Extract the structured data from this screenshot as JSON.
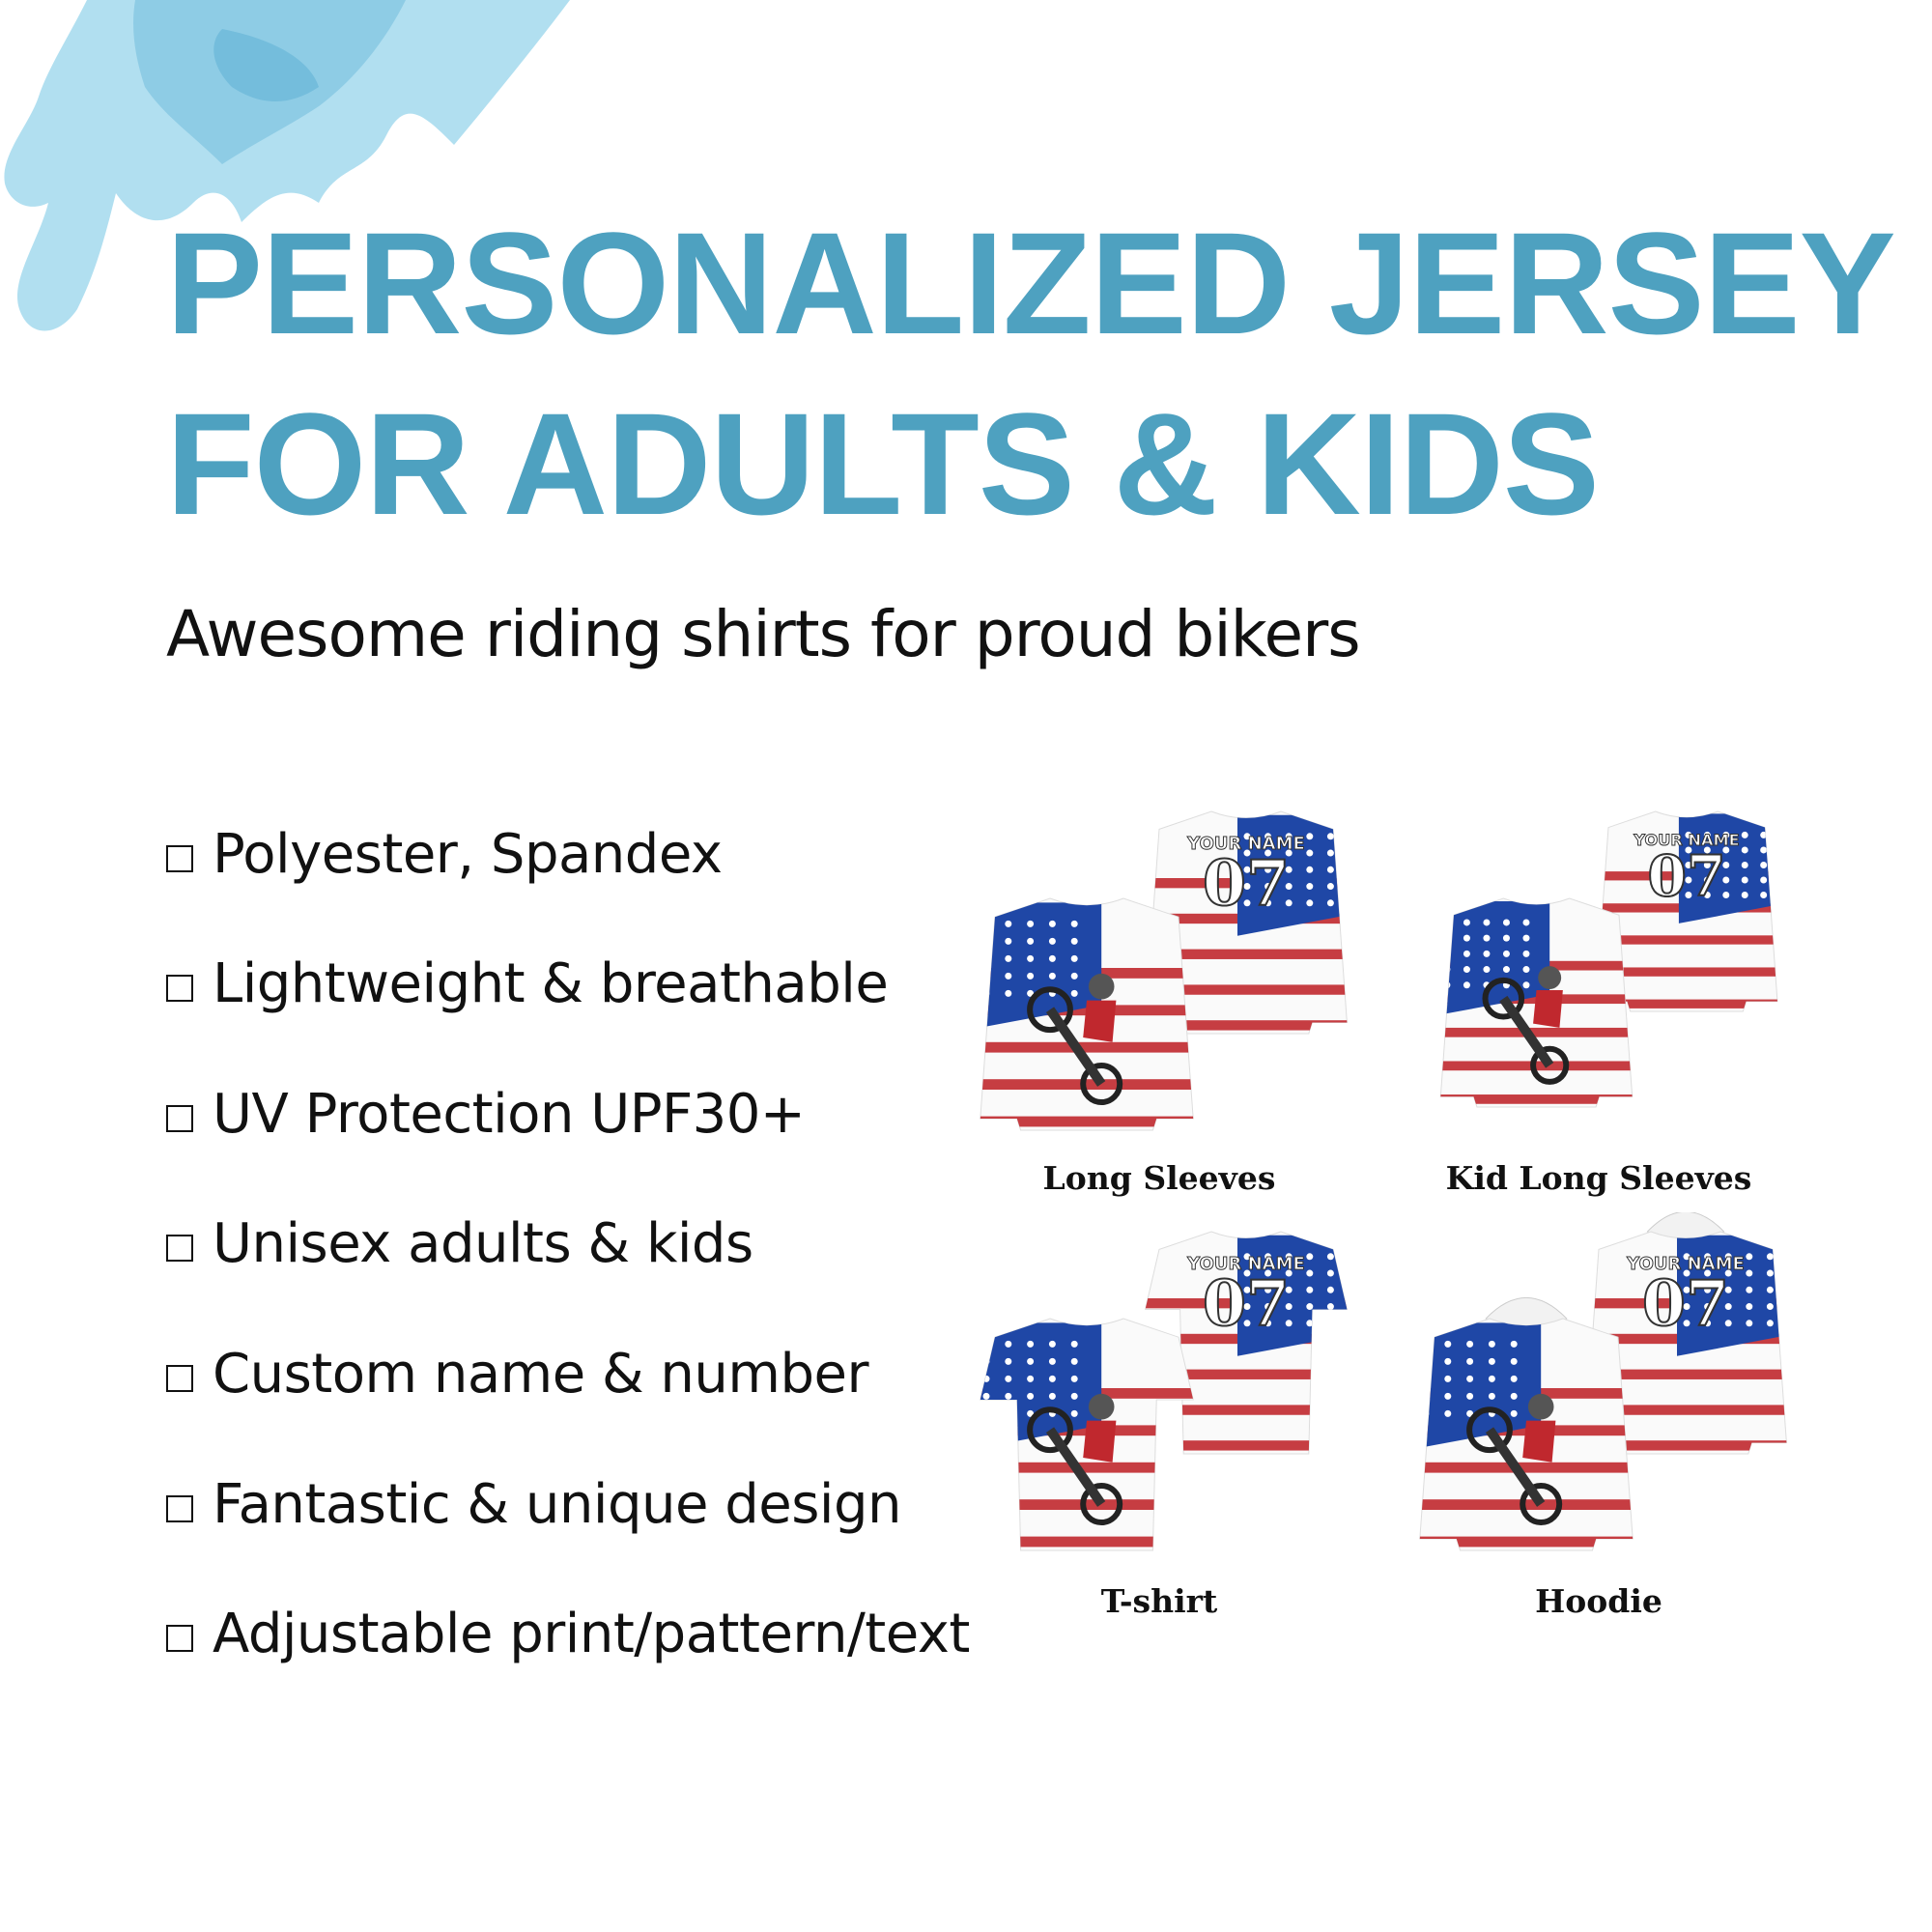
{
  "header": {
    "title_line1": "PERSONALIZED JERSEY",
    "title_line2": "FOR ADULTS & KIDS",
    "subtitle": "Awesome riding shirts for proud bikers"
  },
  "features": [
    "Polyester, Spandex",
    "Lightweight & breathable",
    "UV Protection UPF30+",
    "Unisex adults & kids",
    "Custom name & number",
    "Fantastic & unique design",
    "Adjustable print/pattern/text"
  ],
  "jersey_print": {
    "name": "YOUR NAME",
    "number": "07"
  },
  "products": [
    {
      "label": "Long Sleeves",
      "style": "long-sleeve"
    },
    {
      "label": "Kid Long Sleeves",
      "style": "kid-long-sleeve"
    },
    {
      "label": "T-shirt",
      "style": "t-shirt"
    },
    {
      "label": "Hoodie",
      "style": "hoodie"
    }
  ],
  "colors": {
    "accent": "#4ea1c0",
    "splash": "#a8dcee",
    "flag_red": "#c0282e",
    "flag_blue": "#1f47a6",
    "text": "#111111"
  }
}
